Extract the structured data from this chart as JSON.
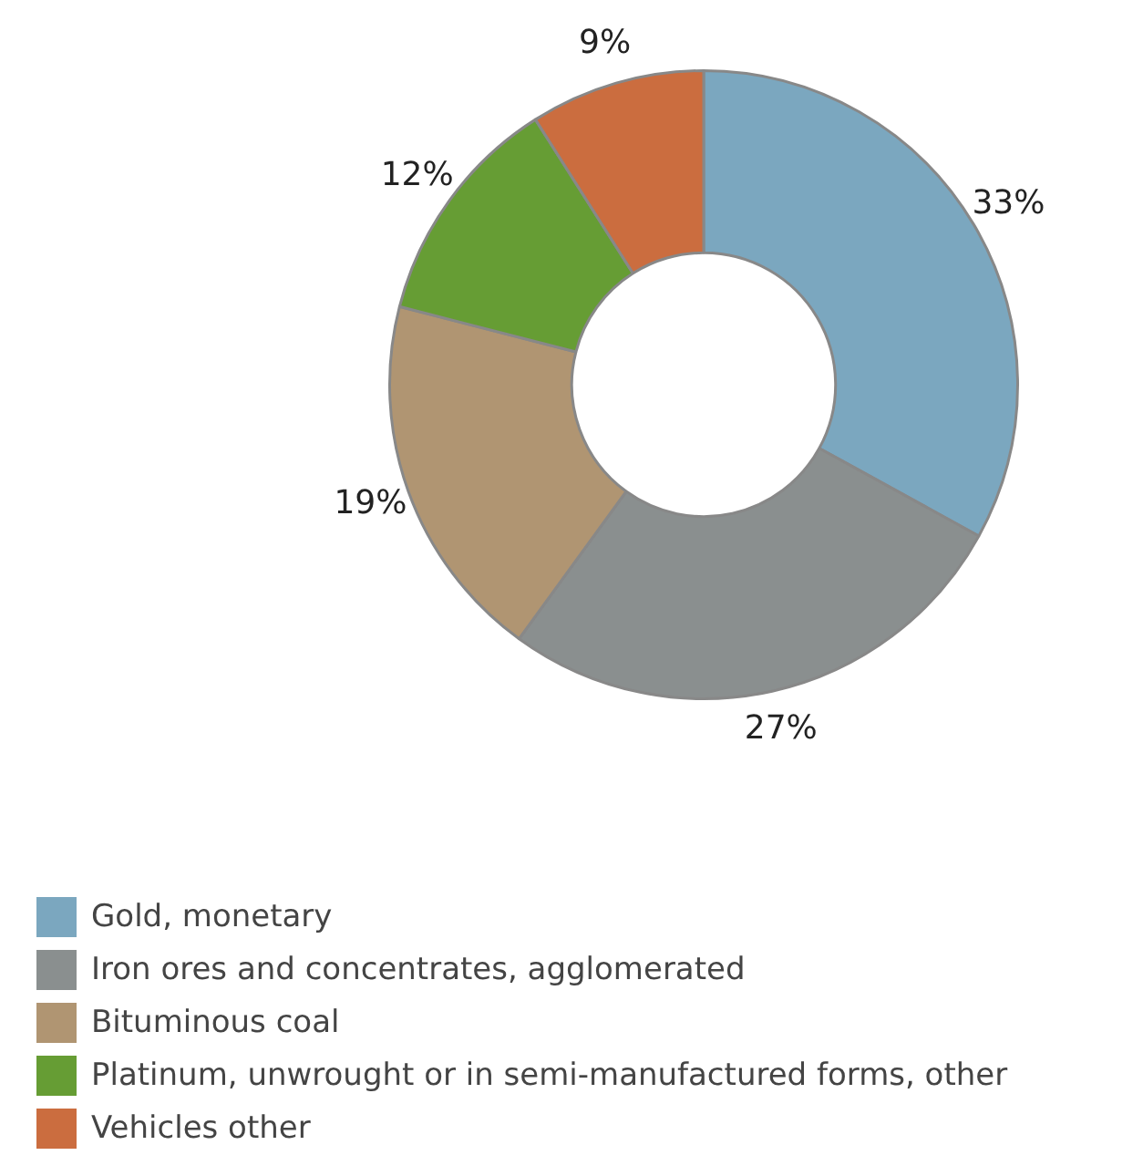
{
  "chart_data": {
    "type": "donut",
    "categories": [
      "Gold, monetary",
      "Iron ores and concentrates, agglomerated",
      "Bituminous coal",
      "Platinum, unwrought or in semi-manufactured forms, other",
      "Vehicles other"
    ],
    "values": [
      33,
      27,
      19,
      12,
      9
    ],
    "colors": [
      "#7ba7bf",
      "#8a8f8f",
      "#b09572",
      "#669d34",
      "#cb6d3f"
    ],
    "value_labels": [
      "33%",
      "27%",
      "19%",
      "12%",
      "9%"
    ],
    "legend": "bottom left"
  }
}
